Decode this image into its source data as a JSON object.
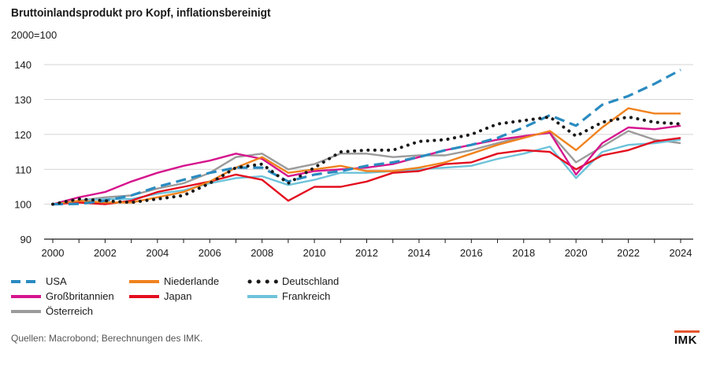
{
  "title": "Bruttoinlandsprodukt pro Kopf, inflationsbereinigt",
  "unit": "2000=100",
  "source": "Quellen: Macrobond; Berechnungen des IMK.",
  "logo": "IMK",
  "chart_data": {
    "type": "line",
    "x": [
      2000,
      2001,
      2002,
      2003,
      2004,
      2005,
      2006,
      2007,
      2008,
      2009,
      2010,
      2011,
      2012,
      2013,
      2014,
      2015,
      2016,
      2017,
      2018,
      2019,
      2020,
      2021,
      2022,
      2023,
      2024
    ],
    "xticks": [
      "2000",
      "2002",
      "2004",
      "2006",
      "2008",
      "2010",
      "2012",
      "2014",
      "2016",
      "2018",
      "2020",
      "2022",
      "2024"
    ],
    "yticks": [
      "90",
      "100",
      "110",
      "120",
      "130",
      "140"
    ],
    "ylim": [
      90,
      145
    ],
    "grid": true,
    "legend_position": "bottom",
    "series": [
      {
        "name": "USA",
        "color": "#2a8bc0",
        "style": "dash",
        "values": [
          100,
          100.1,
          101,
          102.5,
          105,
          107,
          109,
          110.5,
          110.5,
          106.5,
          108.5,
          109.5,
          111,
          112,
          113.5,
          115.5,
          117,
          119,
          122,
          125.5,
          122.5,
          128.5,
          131,
          134.5,
          138.5
        ]
      },
      {
        "name": "Niederlande",
        "color": "#f0821e",
        "style": "solid",
        "values": [
          100,
          101,
          100.5,
          100.5,
          102,
          103.5,
          106.5,
          110.5,
          113.5,
          109,
          110,
          111,
          109.5,
          109.5,
          110.5,
          112,
          114.5,
          117,
          119,
          121,
          115.5,
          122,
          127.5,
          126,
          126
        ]
      },
      {
        "name": "Deutschland",
        "color": "#1a1a1a",
        "style": "dot",
        "values": [
          100,
          101.5,
          101,
          100.5,
          101.5,
          102.5,
          106,
          110.5,
          111.5,
          106,
          110.5,
          115,
          115.5,
          115.5,
          118,
          118.5,
          120,
          123,
          124,
          125,
          119.5,
          123.5,
          125,
          123.5,
          123
        ]
      },
      {
        "name": "Großbritannien",
        "color": "#d6158d",
        "style": "solid",
        "values": [
          100,
          102,
          103.5,
          106.5,
          109,
          111,
          112.5,
          114.5,
          113,
          108,
          109.5,
          110,
          110.5,
          111.5,
          113.5,
          115.5,
          117,
          118.5,
          119.5,
          120.5,
          108.5,
          117.5,
          122,
          121.5,
          122.5
        ]
      },
      {
        "name": "Japan",
        "color": "#e30e1f",
        "style": "solid",
        "values": [
          100,
          100.5,
          100,
          101,
          103.5,
          105,
          106.5,
          108.5,
          107,
          101,
          105,
          105,
          106.5,
          109,
          109.5,
          111.5,
          112,
          114.5,
          115.5,
          115,
          110,
          114,
          115.5,
          118,
          119
        ]
      },
      {
        "name": "Frankreich",
        "color": "#6ec3da",
        "style": "solid",
        "values": [
          100,
          101,
          101.5,
          101.5,
          103,
          104,
          106,
          107.5,
          108,
          105.5,
          107,
          109,
          109,
          109.5,
          110,
          110.5,
          111,
          113,
          114.5,
          116.5,
          107.5,
          115,
          117,
          117.5,
          118.5
        ]
      },
      {
        "name": "Österreich",
        "color": "#9b9b9b",
        "style": "solid",
        "values": [
          100,
          101,
          102,
          102.5,
          104.5,
          106,
          109,
          113.5,
          114.5,
          110,
          111.5,
          114.5,
          114.5,
          113.5,
          114,
          114,
          115.5,
          117.5,
          119.5,
          120.5,
          112,
          116.5,
          121,
          118.5,
          117.5
        ]
      }
    ]
  }
}
